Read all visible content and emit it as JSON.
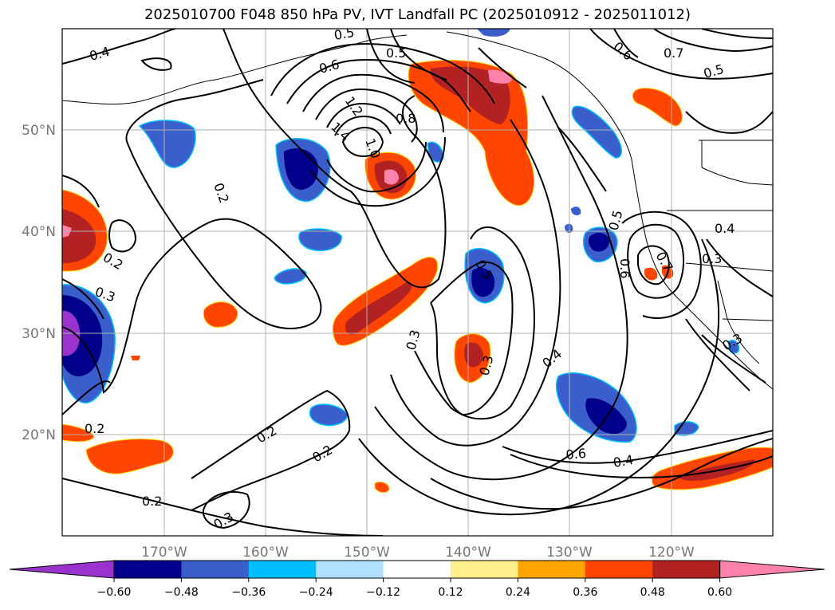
{
  "title": "2025010700 F048 850 hPa PV, IVT Landfall PC (2025010912 - 2025011012)",
  "lon_ticks": [
    "170°W",
    "160°W",
    "150°W",
    "140°W",
    "130°W",
    "120°W"
  ],
  "lat_ticks": [
    "50°N",
    "40°N",
    "30°N",
    "20°N"
  ],
  "contour_labels": [
    "0.2",
    "0.2",
    "0.2",
    "0.2",
    "0.2",
    "0.2",
    "0.3",
    "0.3",
    "0.3",
    "0.3",
    "0.3",
    "0.3",
    "0.4",
    "0.4",
    "0.4",
    "0.4",
    "0.5",
    "0.5",
    "0.5",
    "0.5",
    "0.5",
    "0.6",
    "0.6",
    "0.6",
    "0.6",
    "0.7",
    "0.7",
    "0.8",
    "1.0",
    "1.2",
    "1.4"
  ],
  "colorbar": {
    "colors": [
      "#9a32cd",
      "#00008b",
      "#3a5fcd",
      "#00bfff",
      "#b0e2ff",
      "#ffffff",
      "#fff08c",
      "#ffa500",
      "#ff4500",
      "#b22222",
      "#ff82ab"
    ],
    "tick_labels": [
      "−0.60",
      "−0.48",
      "−0.36",
      "−0.24",
      "−0.12",
      "0.12",
      "0.24",
      "0.36",
      "0.48",
      "0.60"
    ]
  }
}
